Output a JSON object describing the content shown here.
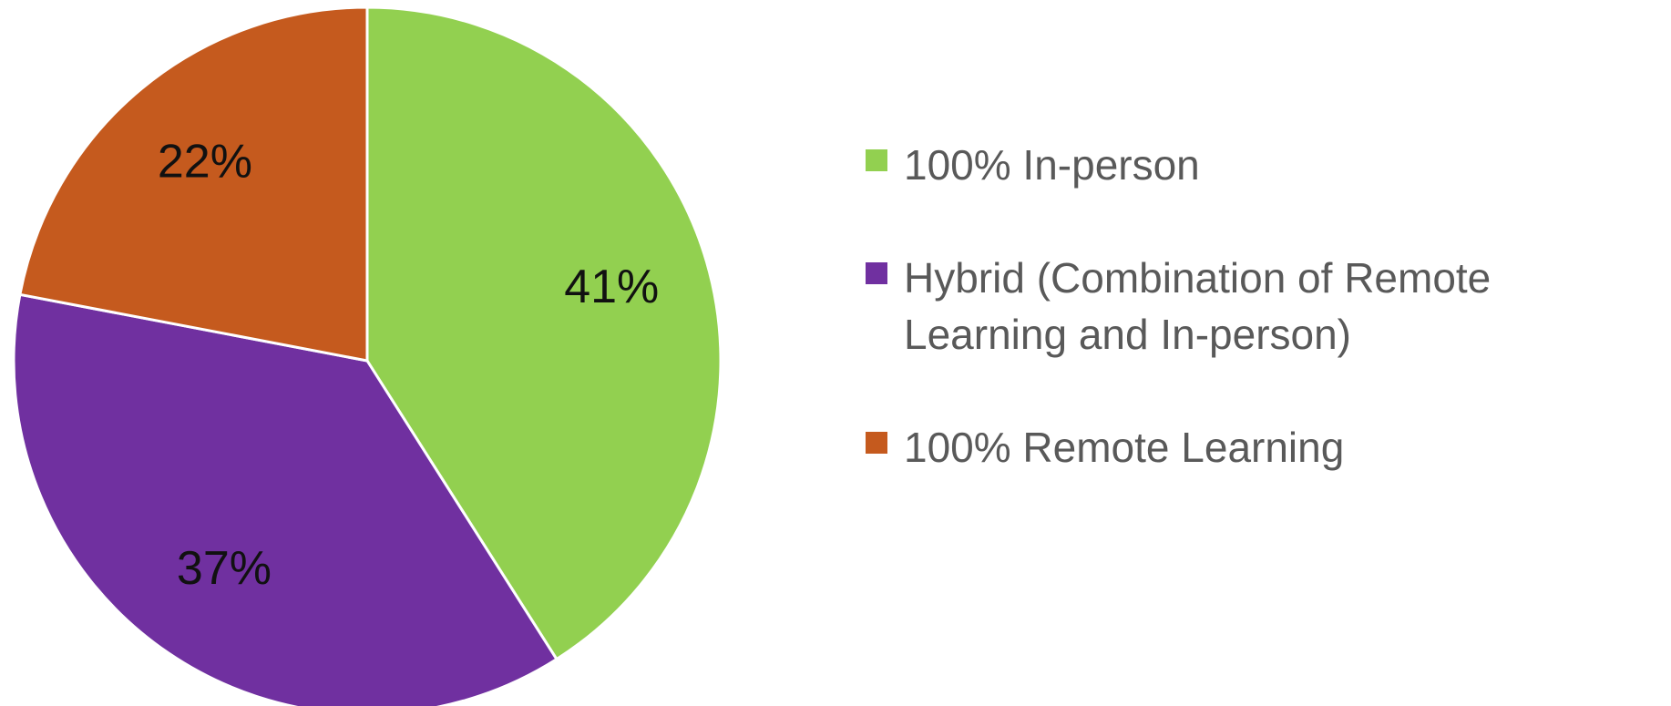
{
  "chart_data": {
    "type": "pie",
    "categories": [
      "100% In-person",
      "Hybrid (Combination of Remote Learning and In-person)",
      "100% Remote Learning"
    ],
    "values": [
      41,
      37,
      22
    ],
    "value_labels": [
      "41%",
      "37%",
      "22%"
    ],
    "colors": [
      "#92d050",
      "#7030a0",
      "#c55a1e"
    ],
    "legend": "right"
  }
}
